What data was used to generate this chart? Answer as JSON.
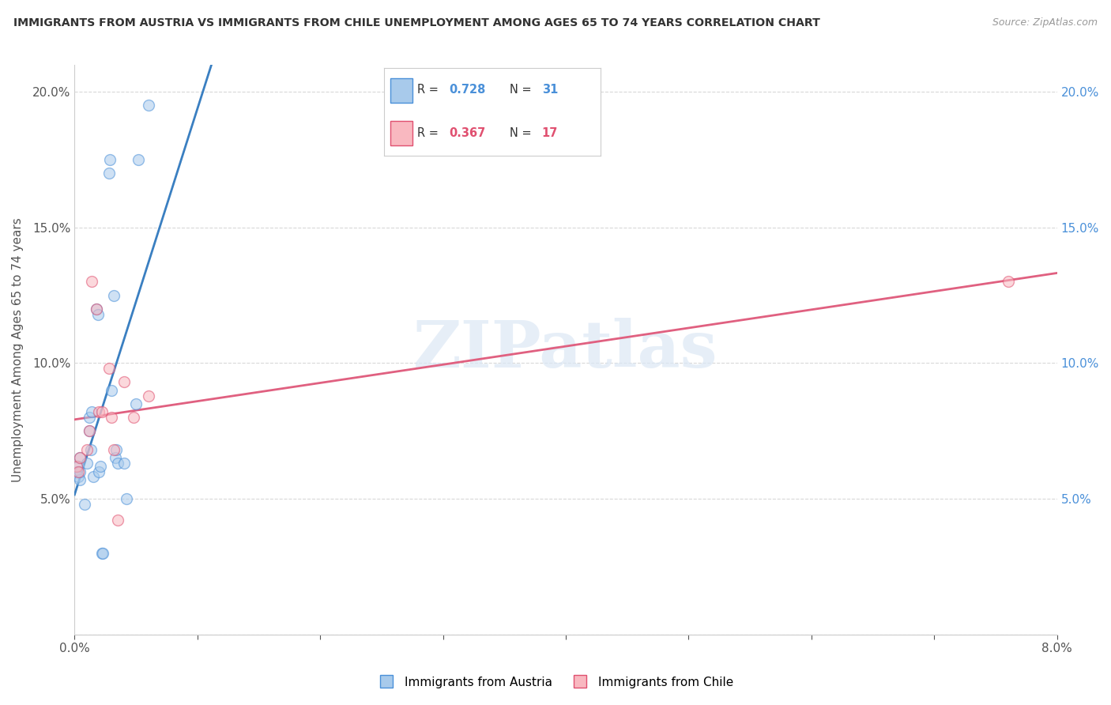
{
  "title": "IMMIGRANTS FROM AUSTRIA VS IMMIGRANTS FROM CHILE UNEMPLOYMENT AMONG AGES 65 TO 74 YEARS CORRELATION CHART",
  "source": "Source: ZipAtlas.com",
  "ylabel": "Unemployment Among Ages 65 to 74 years",
  "xlim": [
    0.0,
    0.08
  ],
  "ylim": [
    0.0,
    0.21
  ],
  "xticks": [
    0.0,
    0.01,
    0.02,
    0.03,
    0.04,
    0.05,
    0.06,
    0.07,
    0.08
  ],
  "yticks": [
    0.0,
    0.05,
    0.1,
    0.15,
    0.2
  ],
  "austria_color": "#a8caeb",
  "austria_edge_color": "#4a90d9",
  "chile_color": "#f9b8c0",
  "chile_edge_color": "#e05070",
  "austria_line_color": "#3a7fc1",
  "chile_line_color": "#e06080",
  "legend_R_austria": "0.728",
  "legend_N_austria": "31",
  "legend_R_chile": "0.367",
  "legend_N_chile": "17",
  "austria_points": [
    [
      0.0002,
      0.06
    ],
    [
      0.0003,
      0.062
    ],
    [
      0.0003,
      0.058
    ],
    [
      0.0004,
      0.057
    ],
    [
      0.0004,
      0.06
    ],
    [
      0.0004,
      0.065
    ],
    [
      0.0008,
      0.048
    ],
    [
      0.001,
      0.063
    ],
    [
      0.0012,
      0.075
    ],
    [
      0.0012,
      0.08
    ],
    [
      0.0013,
      0.068
    ],
    [
      0.0014,
      0.082
    ],
    [
      0.0015,
      0.058
    ],
    [
      0.0018,
      0.12
    ],
    [
      0.0019,
      0.118
    ],
    [
      0.002,
      0.06
    ],
    [
      0.0021,
      0.062
    ],
    [
      0.0022,
      0.03
    ],
    [
      0.0023,
      0.03
    ],
    [
      0.0028,
      0.17
    ],
    [
      0.0029,
      0.175
    ],
    [
      0.003,
      0.09
    ],
    [
      0.0032,
      0.125
    ],
    [
      0.0033,
      0.065
    ],
    [
      0.0034,
      0.068
    ],
    [
      0.0035,
      0.063
    ],
    [
      0.004,
      0.063
    ],
    [
      0.0042,
      0.05
    ],
    [
      0.005,
      0.085
    ],
    [
      0.0052,
      0.175
    ],
    [
      0.006,
      0.195
    ]
  ],
  "chile_points": [
    [
      0.0002,
      0.062
    ],
    [
      0.0003,
      0.06
    ],
    [
      0.0004,
      0.065
    ],
    [
      0.001,
      0.068
    ],
    [
      0.0012,
      0.075
    ],
    [
      0.0014,
      0.13
    ],
    [
      0.0018,
      0.12
    ],
    [
      0.002,
      0.082
    ],
    [
      0.0022,
      0.082
    ],
    [
      0.0028,
      0.098
    ],
    [
      0.003,
      0.08
    ],
    [
      0.0032,
      0.068
    ],
    [
      0.0035,
      0.042
    ],
    [
      0.004,
      0.093
    ],
    [
      0.0048,
      0.08
    ],
    [
      0.006,
      0.088
    ],
    [
      0.076,
      0.13
    ]
  ],
  "watermark": "ZIPatlas",
  "background_color": "#ffffff",
  "grid_color": "#d8d8d8",
  "marker_size": 100,
  "marker_alpha": 0.55
}
